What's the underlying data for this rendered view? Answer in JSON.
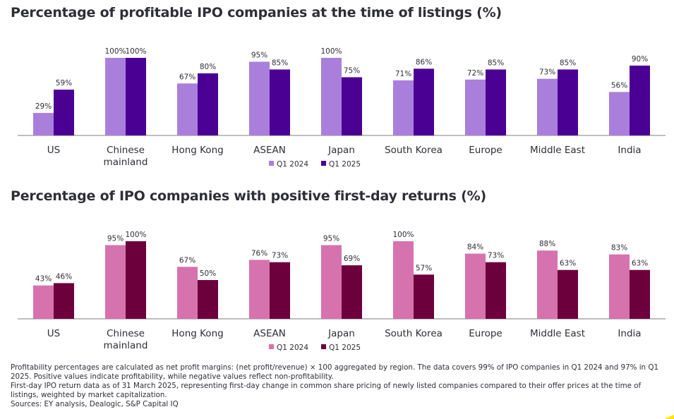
{
  "chart_data": [
    {
      "type": "bar",
      "title": "Percentage of profitable IPO companies at the time of listings (%)",
      "categories": [
        "US",
        "Chinese mainland",
        "Hong Kong",
        "ASEAN",
        "Japan",
        "South Korea",
        "Europe",
        "Middle East",
        "India"
      ],
      "series": [
        {
          "name": "Q1 2024",
          "values": [
            29,
            100,
            67,
            95,
            100,
            71,
            72,
            73,
            56
          ],
          "color": "#a97fdb"
        },
        {
          "name": "Q1 2025",
          "values": [
            59,
            100,
            80,
            85,
            75,
            86,
            85,
            85,
            90
          ],
          "color": "#4b0094"
        }
      ],
      "value_labels": [
        [
          "29%",
          "100%",
          "67%",
          "95%",
          "100%",
          "71%",
          "72%",
          "73%",
          "56%"
        ],
        [
          "59%",
          "100%",
          "80%",
          "85%",
          "75%",
          "86%",
          "85%",
          "85%",
          "90%"
        ]
      ],
      "ylim": [
        0,
        100
      ],
      "grid": false,
      "legend": "bottom-center"
    },
    {
      "type": "bar",
      "title": "Percentage of IPO companies with positive first-day returns (%)",
      "categories": [
        "US",
        "Chinese mainland",
        "Hong Kong",
        "ASEAN",
        "Japan",
        "South Korea",
        "Europe",
        "Middle East",
        "India"
      ],
      "series": [
        {
          "name": "Q1 2024",
          "values": [
            43,
            95,
            67,
            76,
            95,
            100,
            84,
            88,
            83
          ],
          "color": "#d672ae"
        },
        {
          "name": "Q1 2025",
          "values": [
            46,
            100,
            50,
            73,
            69,
            57,
            73,
            63,
            63
          ],
          "color": "#6b003d"
        }
      ],
      "value_labels": [
        [
          "43%",
          "95%",
          "67%",
          "76%",
          "95%",
          "100%",
          "84%",
          "88%",
          "83%"
        ],
        [
          "46%",
          "100%",
          "50%",
          "73%",
          "69%",
          "57%",
          "73%",
          "63%",
          "63%"
        ]
      ],
      "ylim": [
        0,
        100
      ],
      "grid": false,
      "legend": "bottom-center"
    }
  ],
  "footnotes": [
    "Profitability percentages are calculated as net profit margins: (net profit/revenue) × 100 aggregated by region. The data covers 99% of IPO companies in Q1 2024 and 97% in Q1 2025. Positive values indicate profitability, while negative values reflect non-profitability.",
    "First-day IPO return data as of 31 March 2025, representing first-day change in common share pricing of newly listed companies compared to their offer prices at the time of listings, weighted by market capitalization.",
    "Sources: EY analysis, Dealogic, S&P Capital IQ"
  ],
  "accent_color": "#ffe600"
}
